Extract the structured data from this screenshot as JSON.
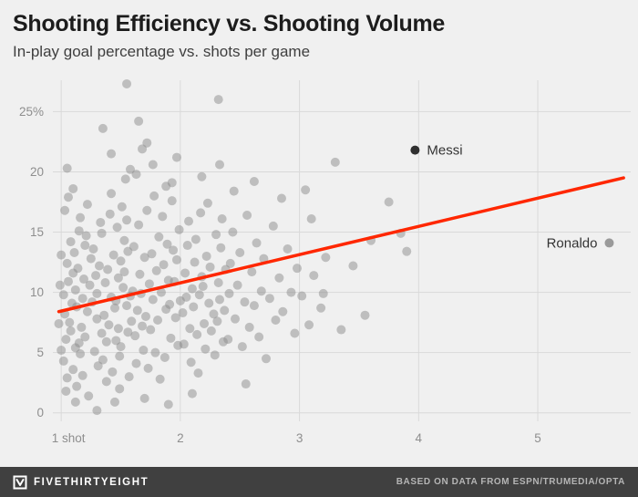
{
  "header": {
    "title": "Shooting Efficiency vs. Shooting Volume",
    "subtitle": "In-play goal percentage vs. shots per game"
  },
  "footer": {
    "brand": "FIVETHIRTYEIGHT",
    "source": "BASED ON DATA FROM ESPN/TRUMEDIA/OPTA",
    "bg": "#404040"
  },
  "chart_data": {
    "type": "scatter",
    "title": "Shooting Efficiency vs. Shooting Volume",
    "subtitle": "In-play goal percentage vs. shots per game",
    "xlabel": "shots per game",
    "ylabel": "in-play goal percentage",
    "grid": true,
    "legend": "none",
    "xlim": [
      0.93,
      5.78
    ],
    "ylim": [
      -0.7,
      27.6
    ],
    "x_ticks": [
      {
        "value": 1,
        "label": "1 shot"
      },
      {
        "value": 2,
        "label": "2"
      },
      {
        "value": 3,
        "label": "3"
      },
      {
        "value": 4,
        "label": "4"
      },
      {
        "value": 5,
        "label": "5"
      }
    ],
    "y_ticks": [
      {
        "value": 0,
        "label": "0"
      },
      {
        "value": 5,
        "label": "5"
      },
      {
        "value": 10,
        "label": "10"
      },
      {
        "value": 15,
        "label": "15"
      },
      {
        "value": 20,
        "label": "20"
      },
      {
        "value": 25,
        "label": "25%"
      }
    ],
    "colors": {
      "point": "#8c8c8c",
      "grid": "#d9d9d9",
      "tick_label": "#8e8e8e",
      "trend": "#ff2700",
      "annotation_text": "#333333",
      "background": "#f0f0f0"
    },
    "point_opacity": 0.5,
    "point_radius": 5,
    "trend": {
      "x1": 0.98,
      "y1": 8.4,
      "x2": 5.72,
      "y2": 19.5,
      "color": "#ff2700"
    },
    "annotated_points": [
      {
        "label": "Messi",
        "x": 3.97,
        "y": 21.8,
        "color": "#2f2f2f",
        "label_side": "right"
      },
      {
        "label": "Ronaldo",
        "x": 5.6,
        "y": 14.1,
        "color": "#9a9a9a",
        "label_side": "left"
      }
    ],
    "points": [
      [
        0.98,
        7.4
      ],
      [
        0.99,
        10.6
      ],
      [
        1.0,
        13.1
      ],
      [
        1.0,
        5.2
      ],
      [
        1.02,
        9.8
      ],
      [
        1.03,
        8.2
      ],
      [
        1.05,
        12.4
      ],
      [
        1.04,
        6.1
      ],
      [
        1.06,
        10.9
      ],
      [
        1.02,
        4.3
      ],
      [
        1.08,
        14.2
      ],
      [
        1.03,
        16.8
      ],
      [
        1.07,
        7.5
      ],
      [
        1.05,
        2.9
      ],
      [
        1.1,
        11.6
      ],
      [
        1.12,
        5.4
      ],
      [
        1.09,
        9.1
      ],
      [
        1.11,
        13.3
      ],
      [
        1.06,
        17.9
      ],
      [
        1.04,
        1.8
      ],
      [
        1.13,
        8.8
      ],
      [
        1.1,
        3.6
      ],
      [
        1.15,
        15.1
      ],
      [
        1.12,
        10.2
      ],
      [
        1.08,
        6.8
      ],
      [
        1.14,
        12.0
      ],
      [
        1.16,
        4.9
      ],
      [
        1.1,
        18.6
      ],
      [
        1.05,
        20.3
      ],
      [
        1.18,
        9.5
      ],
      [
        1.13,
        2.2
      ],
      [
        1.17,
        7.1
      ],
      [
        1.2,
        13.9
      ],
      [
        1.15,
        5.8
      ],
      [
        1.19,
        11.1
      ],
      [
        1.16,
        16.2
      ],
      [
        1.22,
        8.4
      ],
      [
        1.18,
        3.1
      ],
      [
        1.21,
        14.7
      ],
      [
        1.24,
        10.6
      ],
      [
        1.2,
        6.3
      ],
      [
        1.23,
        1.4
      ],
      [
        1.25,
        12.8
      ],
      [
        1.22,
        17.3
      ],
      [
        1.12,
        0.9
      ],
      [
        1.26,
        9.2
      ],
      [
        1.28,
        5.1
      ],
      [
        1.27,
        13.6
      ],
      [
        1.3,
        7.8
      ],
      [
        1.29,
        11.4
      ],
      [
        1.31,
        3.9
      ],
      [
        1.33,
        15.8
      ],
      [
        1.3,
        9.9
      ],
      [
        1.34,
        6.6
      ],
      [
        1.32,
        12.2
      ],
      [
        1.36,
        8.1
      ],
      [
        1.35,
        4.4
      ],
      [
        1.37,
        10.8
      ],
      [
        1.34,
        14.9
      ],
      [
        1.38,
        2.6
      ],
      [
        1.4,
        7.3
      ],
      [
        1.39,
        11.9
      ],
      [
        1.41,
        16.5
      ],
      [
        1.38,
        5.9
      ],
      [
        1.42,
        9.6
      ],
      [
        1.44,
        13.1
      ],
      [
        1.43,
        3.4
      ],
      [
        1.45,
        8.7
      ],
      [
        1.42,
        18.2
      ],
      [
        1.46,
        6.0
      ],
      [
        1.48,
        11.2
      ],
      [
        1.47,
        15.4
      ],
      [
        1.49,
        4.7
      ],
      [
        1.46,
        9.3
      ],
      [
        1.5,
        12.6
      ],
      [
        1.48,
        7.0
      ],
      [
        1.51,
        17.1
      ],
      [
        1.49,
        2.0
      ],
      [
        1.52,
        10.4
      ],
      [
        1.5,
        5.5
      ],
      [
        1.53,
        14.3
      ],
      [
        1.55,
        8.9
      ],
      [
        1.54,
        19.4
      ],
      [
        1.56,
        6.7
      ],
      [
        1.53,
        11.7
      ],
      [
        1.57,
        3.0
      ],
      [
        1.55,
        16.0
      ],
      [
        1.58,
        9.7
      ],
      [
        1.56,
        13.4
      ],
      [
        1.59,
        7.6
      ],
      [
        1.3,
        0.2
      ],
      [
        1.45,
        0.9
      ],
      [
        1.35,
        23.6
      ],
      [
        1.55,
        27.3
      ],
      [
        1.42,
        21.5
      ],
      [
        1.6,
        10.1
      ],
      [
        1.62,
        6.4
      ],
      [
        1.61,
        13.8
      ],
      [
        1.64,
        8.5
      ],
      [
        1.63,
        4.1
      ],
      [
        1.66,
        11.5
      ],
      [
        1.65,
        15.6
      ],
      [
        1.68,
        7.2
      ],
      [
        1.67,
        9.9
      ],
      [
        1.7,
        12.9
      ],
      [
        1.69,
        5.2
      ],
      [
        1.72,
        16.8
      ],
      [
        1.71,
        8.0
      ],
      [
        1.74,
        10.7
      ],
      [
        1.73,
        3.7
      ],
      [
        1.76,
        13.2
      ],
      [
        1.75,
        6.9
      ],
      [
        1.78,
        18.0
      ],
      [
        1.77,
        9.4
      ],
      [
        1.8,
        11.8
      ],
      [
        1.79,
        5.0
      ],
      [
        1.82,
        14.6
      ],
      [
        1.81,
        7.7
      ],
      [
        1.84,
        10.0
      ],
      [
        1.83,
        2.8
      ],
      [
        1.86,
        12.3
      ],
      [
        1.85,
        16.3
      ],
      [
        1.88,
        8.6
      ],
      [
        1.87,
        4.6
      ],
      [
        1.9,
        11.0
      ],
      [
        1.89,
        14.0
      ],
      [
        1.92,
        6.2
      ],
      [
        1.91,
        9.0
      ],
      [
        1.94,
        13.5
      ],
      [
        1.93,
        17.6
      ],
      [
        1.96,
        7.9
      ],
      [
        1.95,
        10.9
      ],
      [
        1.98,
        5.6
      ],
      [
        1.97,
        12.7
      ],
      [
        2.0,
        9.3
      ],
      [
        1.99,
        15.2
      ],
      [
        1.63,
        19.8
      ],
      [
        1.77,
        20.6
      ],
      [
        1.93,
        19.1
      ],
      [
        1.68,
        21.9
      ],
      [
        1.58,
        20.2
      ],
      [
        1.72,
        22.4
      ],
      [
        1.88,
        18.8
      ],
      [
        1.97,
        21.2
      ],
      [
        1.65,
        24.2
      ],
      [
        1.7,
        1.2
      ],
      [
        1.9,
        0.7
      ],
      [
        2.02,
        8.3
      ],
      [
        2.04,
        11.6
      ],
      [
        2.03,
        5.7
      ],
      [
        2.06,
        13.9
      ],
      [
        2.05,
        9.6
      ],
      [
        2.08,
        7.0
      ],
      [
        2.07,
        15.9
      ],
      [
        2.1,
        10.3
      ],
      [
        2.09,
        4.2
      ],
      [
        2.12,
        12.5
      ],
      [
        2.11,
        8.8
      ],
      [
        2.14,
        6.5
      ],
      [
        2.13,
        14.4
      ],
      [
        2.16,
        9.8
      ],
      [
        2.15,
        3.3
      ],
      [
        2.18,
        11.3
      ],
      [
        2.17,
        16.6
      ],
      [
        2.2,
        7.4
      ],
      [
        2.19,
        10.5
      ],
      [
        2.22,
        13.0
      ],
      [
        2.21,
        5.3
      ],
      [
        2.24,
        9.1
      ],
      [
        2.23,
        17.4
      ],
      [
        2.26,
        6.8
      ],
      [
        2.25,
        12.1
      ],
      [
        2.28,
        8.2
      ],
      [
        2.3,
        14.8
      ],
      [
        2.29,
        4.8
      ],
      [
        2.32,
        10.8
      ],
      [
        2.31,
        7.6
      ],
      [
        2.34,
        13.7
      ],
      [
        2.33,
        9.4
      ],
      [
        2.36,
        5.9
      ],
      [
        2.35,
        16.1
      ],
      [
        2.38,
        11.9
      ],
      [
        2.37,
        8.5
      ],
      [
        2.4,
        6.1
      ],
      [
        2.42,
        12.4
      ],
      [
        2.41,
        9.9
      ],
      [
        2.44,
        15.0
      ],
      [
        2.32,
        26.0
      ],
      [
        2.18,
        19.6
      ],
      [
        2.33,
        20.6
      ],
      [
        2.1,
        1.6
      ],
      [
        2.45,
        18.4
      ],
      [
        2.46,
        7.8
      ],
      [
        2.48,
        10.6
      ],
      [
        2.5,
        13.3
      ],
      [
        2.52,
        5.5
      ],
      [
        2.54,
        9.2
      ],
      [
        2.56,
        16.4
      ],
      [
        2.58,
        7.1
      ],
      [
        2.6,
        11.7
      ],
      [
        2.62,
        8.9
      ],
      [
        2.64,
        14.1
      ],
      [
        2.66,
        6.3
      ],
      [
        2.68,
        10.1
      ],
      [
        2.7,
        12.8
      ],
      [
        2.72,
        4.5
      ],
      [
        2.75,
        9.5
      ],
      [
        2.78,
        15.5
      ],
      [
        2.8,
        7.7
      ],
      [
        2.83,
        11.2
      ],
      [
        2.86,
        8.4
      ],
      [
        2.9,
        13.6
      ],
      [
        2.93,
        10.0
      ],
      [
        2.96,
        6.6
      ],
      [
        2.98,
        12.0
      ],
      [
        2.55,
        2.4
      ],
      [
        2.85,
        17.8
      ],
      [
        2.62,
        19.2
      ],
      [
        3.02,
        9.7
      ],
      [
        3.05,
        18.5
      ],
      [
        3.08,
        7.3
      ],
      [
        3.1,
        16.1
      ],
      [
        3.12,
        11.4
      ],
      [
        3.18,
        8.7
      ],
      [
        3.2,
        9.9
      ],
      [
        3.22,
        12.9
      ],
      [
        3.3,
        20.8
      ],
      [
        3.35,
        6.9
      ],
      [
        3.45,
        12.2
      ],
      [
        3.55,
        8.1
      ],
      [
        3.6,
        14.3
      ],
      [
        3.75,
        17.5
      ],
      [
        3.85,
        14.9
      ],
      [
        3.9,
        13.4
      ]
    ]
  }
}
